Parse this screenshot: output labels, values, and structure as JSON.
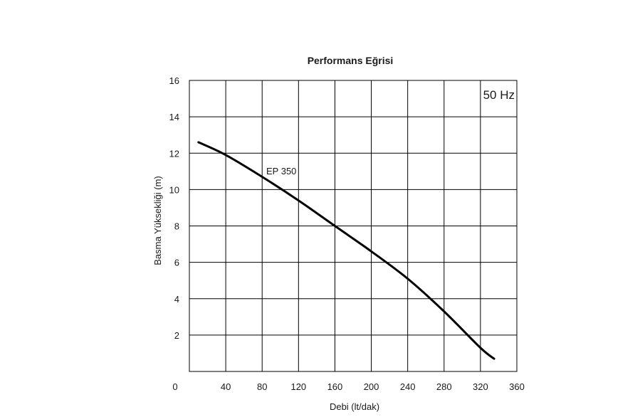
{
  "chart_data": {
    "type": "line",
    "title": "Performans Eğrisi",
    "xlabel": "Debi (lt/dak)",
    "ylabel": "Basma Yüksekliği (m)",
    "xlim": [
      0,
      360
    ],
    "ylim": [
      0,
      16
    ],
    "x_ticks": [
      "0",
      "40",
      "80",
      "120",
      "160",
      "200",
      "240",
      "280",
      "320",
      "360"
    ],
    "y_ticks": [
      "2",
      "4",
      "6",
      "8",
      "10",
      "12",
      "14",
      "16"
    ],
    "grid": true,
    "legend": "none",
    "annotations": [
      {
        "text": "50 Hz",
        "position": "top-right"
      }
    ],
    "series": [
      {
        "name": "EP 350",
        "color": "#000000",
        "x": [
          10,
          40,
          80,
          120,
          160,
          200,
          240,
          280,
          320,
          335
        ],
        "y": [
          12.6,
          11.9,
          10.7,
          9.4,
          8.0,
          6.6,
          5.1,
          3.3,
          1.3,
          0.7
        ]
      }
    ]
  }
}
